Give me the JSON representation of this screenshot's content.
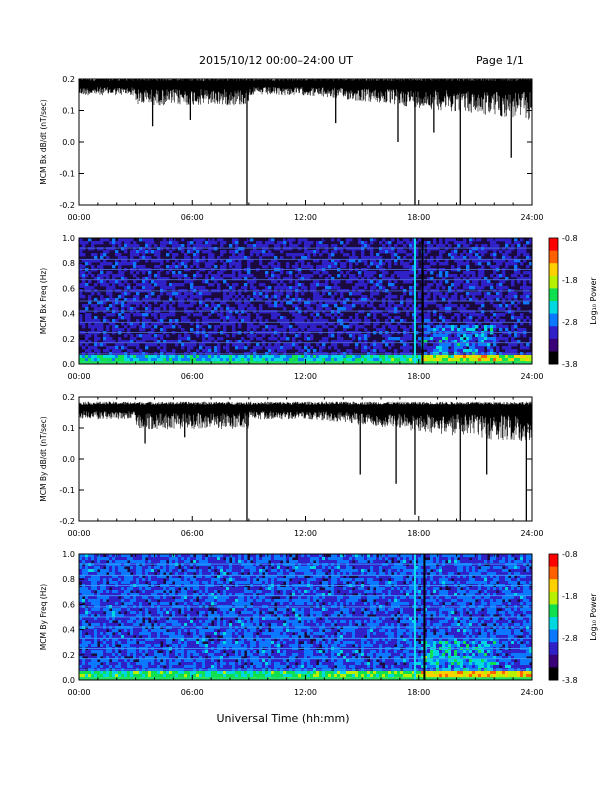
{
  "header": {
    "title": "2015/10/12  00:00–24:00 UT",
    "page": "Page 1/1"
  },
  "footer": {
    "xlabel": "Universal Time (hh:mm)"
  },
  "colors": {
    "trace": "#000000",
    "spectrogram_background": "#1a0a3e",
    "colormap": [
      "#000000",
      "#3a0078",
      "#3020c8",
      "#0a78ff",
      "#00d8e0",
      "#10e050",
      "#b8f000",
      "#ffd000",
      "#ff6000",
      "#ff0000"
    ]
  },
  "chart_data": [
    {
      "type": "line",
      "title": "",
      "ylabel": "MCM Bx dB/dt (nT/sec)",
      "xlim": [
        0,
        24
      ],
      "ylim": [
        -0.2,
        0.2
      ],
      "x_ticks": [
        "00:00",
        "06:00",
        "12:00",
        "18:00",
        "24:00"
      ],
      "y_ticks": [
        "0.2",
        "0.1",
        "0.0",
        "-0.1",
        "-0.2"
      ],
      "baseline": 0.18,
      "spikes": [
        {
          "t": 3.9,
          "y": 0.05
        },
        {
          "t": 5.9,
          "y": 0.07
        },
        {
          "t": 8.9,
          "y": -0.2
        },
        {
          "t": 13.6,
          "y": 0.06
        },
        {
          "t": 16.9,
          "y": 0.0
        },
        {
          "t": 17.8,
          "y": -0.2
        },
        {
          "t": 18.8,
          "y": 0.03
        },
        {
          "t": 20.2,
          "y": -0.2
        },
        {
          "t": 22.9,
          "y": -0.05
        }
      ]
    },
    {
      "type": "heatmap",
      "title": "",
      "ylabel": "MCM Bx Freq (Hz)",
      "xlim": [
        0,
        24
      ],
      "ylim": [
        0,
        1.0
      ],
      "x_ticks": [
        "00:00",
        "06:00",
        "12:00",
        "18:00",
        "24:00"
      ],
      "y_ticks": [
        "1.0",
        "0.8",
        "0.6",
        "0.4",
        "0.2",
        "0.0"
      ],
      "colorbar": {
        "label": "Log₁₀ Power",
        "ticks": [
          "-0.8",
          "-1.8",
          "-2.8",
          "-3.8"
        ],
        "range": [
          -3.8,
          -0.8
        ]
      },
      "harmonic_lines_hz": [
        0.08,
        0.17,
        0.25,
        0.33,
        0.42,
        0.5,
        0.58,
        0.67,
        0.75,
        0.83,
        0.92,
        1.0
      ],
      "broadband_events_ut": [
        17.8,
        18.2
      ]
    },
    {
      "type": "line",
      "title": "",
      "ylabel": "MCM By dB/dt (nT/sec)",
      "xlim": [
        0,
        24
      ],
      "ylim": [
        -0.2,
        0.2
      ],
      "x_ticks": [
        "00:00",
        "06:00",
        "12:00",
        "18:00",
        "24:00"
      ],
      "y_ticks": [
        "0.2",
        "0.1",
        "0.0",
        "-0.1",
        "-0.2"
      ],
      "baseline": 0.16,
      "spikes": [
        {
          "t": 3.5,
          "y": 0.05
        },
        {
          "t": 5.6,
          "y": 0.07
        },
        {
          "t": 8.9,
          "y": -0.2
        },
        {
          "t": 14.9,
          "y": -0.05
        },
        {
          "t": 16.8,
          "y": -0.08
        },
        {
          "t": 17.8,
          "y": -0.18
        },
        {
          "t": 20.2,
          "y": -0.2
        },
        {
          "t": 21.6,
          "y": -0.05
        },
        {
          "t": 23.7,
          "y": -0.2
        }
      ]
    },
    {
      "type": "heatmap",
      "title": "",
      "ylabel": "MCM By Freq (Hz)",
      "xlim": [
        0,
        24
      ],
      "ylim": [
        0,
        1.0
      ],
      "x_ticks": [
        "00:00",
        "06:00",
        "12:00",
        "18:00",
        "24:00"
      ],
      "y_ticks": [
        "1.0",
        "0.8",
        "0.6",
        "0.4",
        "0.2",
        "0.0"
      ],
      "colorbar": {
        "label": "Log₁₀ Power",
        "ticks": [
          "-0.8",
          "-1.8",
          "-2.8",
          "-3.8"
        ],
        "range": [
          -3.8,
          -0.8
        ]
      },
      "harmonic_lines_hz": [
        0.08,
        0.17,
        0.25,
        0.33,
        0.42,
        0.5,
        0.58,
        0.67,
        0.75,
        0.83,
        0.92,
        1.0
      ],
      "broadband_events_ut": [
        17.8,
        18.3
      ]
    }
  ]
}
